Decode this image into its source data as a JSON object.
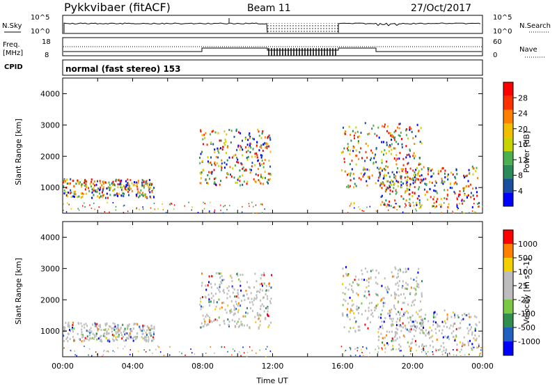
{
  "header": {
    "station": "Pykkvibaer (fitACF)",
    "beam": "Beam 11",
    "date": "27/Oct/2017"
  },
  "strips": {
    "nsky_label": "N.Sky",
    "nsearch_label": "N.Search",
    "freq_label_1": "Freq.",
    "freq_label_2": "[MHz]",
    "nave_label": "Nave",
    "cpid_label": "CPID",
    "cpid_text": "normal (fast stereo) 153",
    "noise_left_ticks": [
      "10^5",
      "10^0"
    ],
    "noise_right_ticks": [
      "10^5",
      "10^0"
    ],
    "freq_left_ticks": [
      "18",
      "8"
    ],
    "freq_right_ticks": [
      "60",
      "0"
    ]
  },
  "chart_data": [
    {
      "type": "heatmap",
      "title": "",
      "xlabel": "",
      "ylabel": "Slant Range [km]",
      "colorbar_label": "Power [dB]",
      "colorbar_ticks": [
        "28",
        "24",
        "20",
        "16",
        "12",
        "8",
        "4"
      ],
      "xlim": [
        0,
        24
      ],
      "ylim": [
        180,
        4500
      ],
      "yticks": [
        "1000",
        "2000",
        "3000",
        "4000"
      ],
      "data_gap_hours": [
        11.9,
        15.9
      ],
      "echo_regions": [
        {
          "t": [
            0.0,
            5.2
          ],
          "range": [
            700,
            1300
          ],
          "value_db": 16
        },
        {
          "t": [
            7.8,
            11.9
          ],
          "range": [
            1100,
            2900
          ],
          "value_db": 10
        },
        {
          "t": [
            15.9,
            20.5
          ],
          "range": [
            1000,
            3100
          ],
          "value_db": 18
        },
        {
          "t": [
            18.0,
            23.8
          ],
          "range": [
            400,
            1700
          ],
          "value_db": 10
        }
      ]
    },
    {
      "type": "heatmap",
      "title": "",
      "xlabel": "Time UT",
      "ylabel": "Slant Range [km]",
      "colorbar_label": "Velocity [m s^-1]",
      "colorbar_ticks": [
        "1000",
        "500",
        "100",
        "25",
        "-25",
        "-100",
        "-500",
        "-1000"
      ],
      "xlim": [
        0,
        24
      ],
      "ylim": [
        180,
        4500
      ],
      "xticks": [
        "00:00",
        "04:00",
        "08:00",
        "12:00",
        "16:00",
        "20:00",
        "00:00"
      ],
      "yticks": [
        "1000",
        "2000",
        "3000",
        "4000"
      ],
      "data_gap_hours": [
        11.9,
        15.9
      ],
      "echo_regions": [
        {
          "t": [
            0.0,
            5.2
          ],
          "range": [
            700,
            1300
          ],
          "value_ms": 0
        },
        {
          "t": [
            7.8,
            11.9
          ],
          "range": [
            1100,
            2900
          ],
          "value_ms": 0
        },
        {
          "t": [
            15.9,
            20.5
          ],
          "range": [
            1000,
            3100
          ],
          "value_ms": 0
        },
        {
          "t": [
            18.0,
            23.8
          ],
          "range": [
            400,
            1700
          ],
          "value_ms": 300
        }
      ]
    }
  ],
  "colors": {
    "power": [
      "#0000ff",
      "#1a4fa0",
      "#2b8a5a",
      "#4caf50",
      "#c8d400",
      "#f0c000",
      "#ff8000",
      "#ff3000",
      "#ff0000"
    ],
    "velocity": [
      "#0000ff",
      "#2060c0",
      "#2f8f4f",
      "#7ac943",
      "#bdbdbd",
      "#bdbdbd",
      "#f5d000",
      "#ff8000",
      "#ff0000"
    ]
  }
}
